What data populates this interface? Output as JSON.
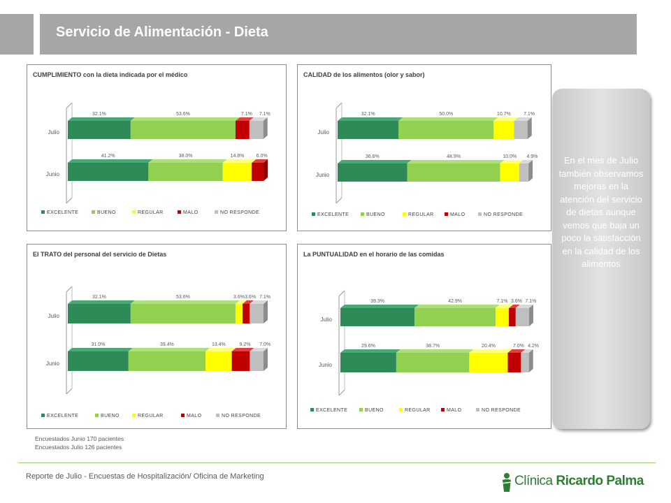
{
  "header": {
    "title": "Servicio de Alimentación - Dieta"
  },
  "legend": [
    "EXCELENTE",
    "BUENO",
    "REGULAR",
    "MALO",
    "NO RESPONDE"
  ],
  "colors": [
    "#2e8b57",
    "#92d050",
    "#ffff00",
    "#c00000",
    "#bfbfbf"
  ],
  "chart_data": [
    {
      "type": "bar",
      "title": "CUMPLIMIENTO con la dieta indicada por el médico",
      "categories": [
        "Julio",
        "Junio"
      ],
      "series": [
        {
          "name": "EXCELENTE",
          "values": [
            32.1,
            41.2
          ],
          "labels": [
            "32.1%",
            "41.2%"
          ]
        },
        {
          "name": "BUENO",
          "values": [
            53.6,
            38.0
          ],
          "labels": [
            "53.6%",
            "38.0%"
          ]
        },
        {
          "name": "REGULAR",
          "values": [
            0,
            14.8
          ],
          "labels": [
            "",
            "14.8%"
          ]
        },
        {
          "name": "MALO",
          "values": [
            7.1,
            6.0
          ],
          "labels": [
            "7.1%",
            "6.0%"
          ]
        },
        {
          "name": "NO RESPONDE",
          "values": [
            7.1,
            0
          ],
          "labels": [
            "7.1%",
            ""
          ]
        }
      ]
    },
    {
      "type": "bar",
      "title": "CALIDAD de los alimentos (olor y sabor)",
      "categories": [
        "Julio",
        "Junio"
      ],
      "series": [
        {
          "name": "EXCELENTE",
          "values": [
            32.1,
            36.6
          ],
          "labels": [
            "32.1%",
            "36.6%"
          ]
        },
        {
          "name": "BUENO",
          "values": [
            50.0,
            48.9
          ],
          "labels": [
            "50.0%",
            "48.9%"
          ]
        },
        {
          "name": "REGULAR",
          "values": [
            10.7,
            10.0
          ],
          "labels": [
            "10.7%",
            "10.0%"
          ]
        },
        {
          "name": "MALO",
          "values": [
            0,
            0
          ],
          "labels": [
            "",
            ""
          ]
        },
        {
          "name": "NO RESPONDE",
          "values": [
            7.1,
            4.9
          ],
          "labels": [
            "7.1%",
            "4.9%"
          ]
        }
      ]
    },
    {
      "type": "bar",
      "title": "El TRATO del personal del servicio de Dietas",
      "categories": [
        "Julio",
        "Junio"
      ],
      "series": [
        {
          "name": "EXCELENTE",
          "values": [
            32.1,
            31.0
          ],
          "labels": [
            "32.1%",
            "31.0%"
          ]
        },
        {
          "name": "BUENO",
          "values": [
            53.6,
            39.4
          ],
          "labels": [
            "53.6%",
            "39.4%"
          ]
        },
        {
          "name": "REGULAR",
          "values": [
            3.6,
            13.4
          ],
          "labels": [
            "3.6%",
            "13.4%"
          ]
        },
        {
          "name": "MALO",
          "values": [
            3.6,
            9.2
          ],
          "labels": [
            "3.6%",
            "9.2%"
          ]
        },
        {
          "name": "NO RESPONDE",
          "values": [
            7.1,
            7.0
          ],
          "labels": [
            "7.1%",
            "7.0%"
          ]
        }
      ]
    },
    {
      "type": "bar",
      "title": "La PUNTUALIDAD en el horario de las comidas",
      "categories": [
        "Julio",
        "Junio"
      ],
      "series": [
        {
          "name": "EXCELENTE",
          "values": [
            39.3,
            29.6
          ],
          "labels": [
            "39.3%",
            "29.6%"
          ]
        },
        {
          "name": "BUENO",
          "values": [
            42.9,
            38.7
          ],
          "labels": [
            "42.9%",
            "38.7%"
          ]
        },
        {
          "name": "REGULAR",
          "values": [
            7.1,
            20.4
          ],
          "labels": [
            "7.1%",
            "20.4%"
          ]
        },
        {
          "name": "MALO",
          "values": [
            3.6,
            7.0
          ],
          "labels": [
            "3.6%",
            "7.0%"
          ]
        },
        {
          "name": "NO RESPONDE",
          "values": [
            7.1,
            4.2
          ],
          "labels": [
            "7.1%",
            "4.2%"
          ]
        }
      ]
    }
  ],
  "callout": {
    "text": "En el mes de Julio también observamos mejoras en la atención del servicio de dietas aunque vemos que baja un poco la satisfacción en la calidad de los alimentos"
  },
  "notes": {
    "line1": "Encuestados Junio 170 pacientes",
    "line2": "Encuestados Julio 126 pacientes"
  },
  "footer": {
    "text": "Reporte de Julio - Encuestas de Hospitalización/ Oficina de Marketing"
  },
  "logo": {
    "part1": "Clínica",
    "part2": "Ricardo Palma"
  }
}
